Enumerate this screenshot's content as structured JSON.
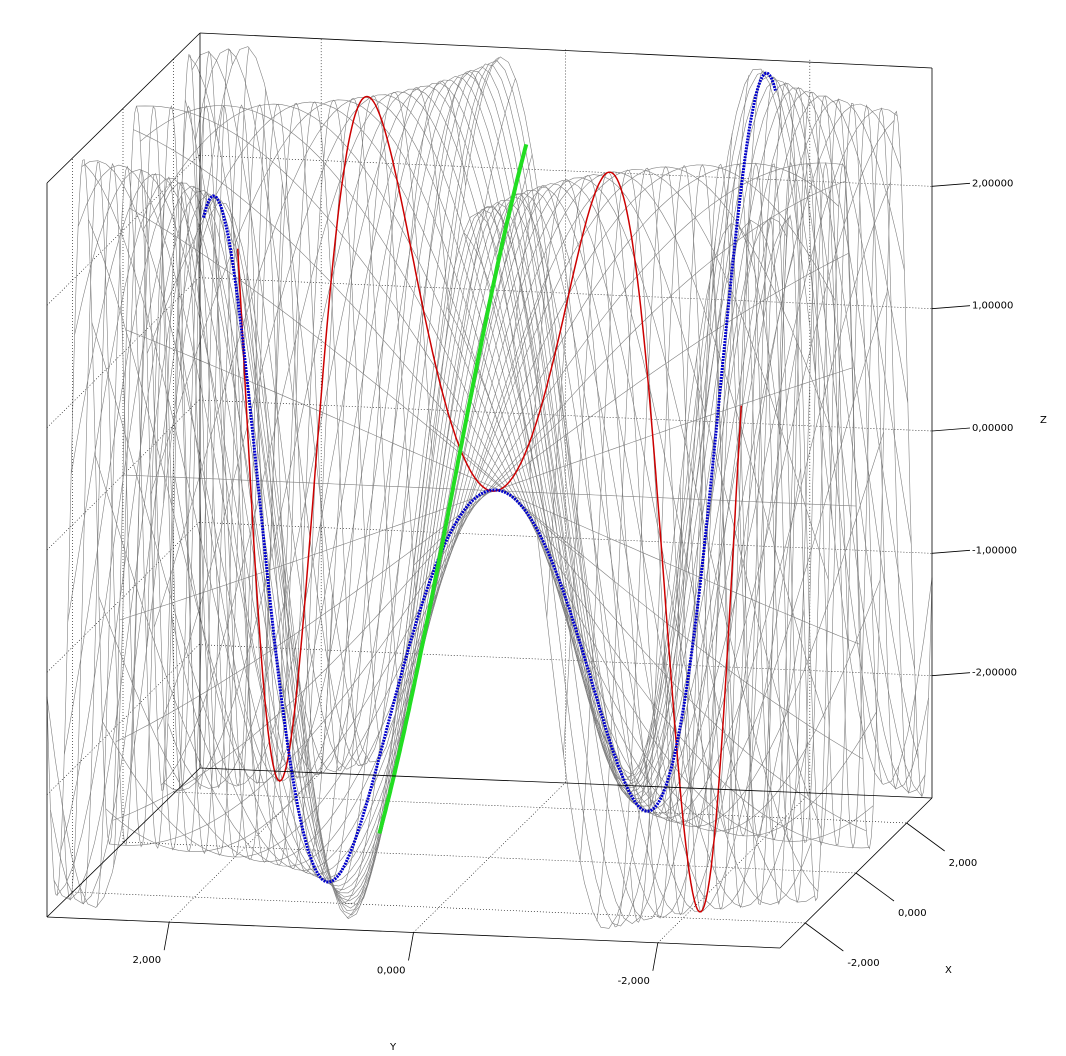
{
  "chart_data": {
    "type": "surface3d",
    "x_label": "X",
    "y_label": "Y",
    "z_label": "Z",
    "xlim": [
      -3,
      3
    ],
    "ylim": [
      -3,
      3
    ],
    "zlim": [
      -3,
      3
    ],
    "xticks": [
      {
        "value": -2,
        "label": "-2,000"
      },
      {
        "value": 0,
        "label": "0,000"
      },
      {
        "value": 2,
        "label": "2,000"
      }
    ],
    "yticks": [
      {
        "value": -2,
        "label": "-2,000"
      },
      {
        "value": 0,
        "label": "0,000"
      },
      {
        "value": 2,
        "label": "2,000"
      }
    ],
    "zticks": [
      {
        "value": -2,
        "label": "-2,00000"
      },
      {
        "value": -1,
        "label": "-1,00000"
      },
      {
        "value": 0,
        "label": "0,00000"
      },
      {
        "value": 1,
        "label": "1,00000"
      },
      {
        "value": 2,
        "label": "2,00000"
      }
    ],
    "grid": true,
    "surface_color": "#808080",
    "curve_colors": [
      "#cc0000",
      "#0000cc",
      "#22dd22"
    ]
  }
}
